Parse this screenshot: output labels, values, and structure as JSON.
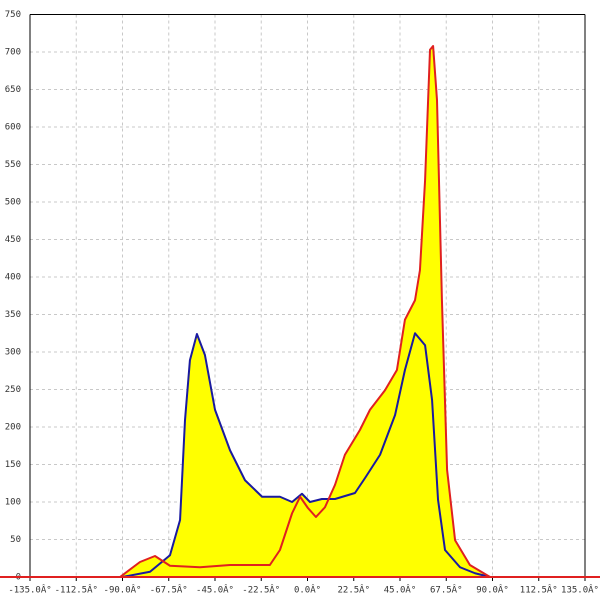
{
  "chart_data": {
    "type": "area-line",
    "xlim": [
      -135,
      135
    ],
    "xticks": [
      {
        "value": -135,
        "label": "-135.0Â°"
      },
      {
        "value": -112.5,
        "label": "-112.5Â°"
      },
      {
        "value": -90,
        "label": "-90.0Â°"
      },
      {
        "value": -67.5,
        "label": "-67.5Â°"
      },
      {
        "value": -45,
        "label": "-45.0Â°"
      },
      {
        "value": -22.5,
        "label": "-22.5Â°"
      },
      {
        "value": 0,
        "label": "0.0Â°"
      },
      {
        "value": 22.5,
        "label": "22.5Â°"
      },
      {
        "value": 45,
        "label": "45.0Â°"
      },
      {
        "value": 67.5,
        "label": "67.5Â°"
      },
      {
        "value": 90,
        "label": "90.0Â°"
      },
      {
        "value": 112.5,
        "label": "112.5Â°"
      },
      {
        "value": 135,
        "label": "135.0Â°"
      }
    ],
    "ylim": [
      0,
      750
    ],
    "yticks": [
      0,
      50,
      100,
      150,
      200,
      250,
      300,
      350,
      400,
      450,
      500,
      550,
      600,
      650,
      700,
      750
    ],
    "grid": true,
    "fill_color": "#ffff00",
    "series": [
      {
        "color": "#e02020",
        "x": [
          -91.2,
          -81.5,
          -74.2,
          -66.9,
          -52.3,
          -37.7,
          -18.3,
          -13.4,
          -7.5,
          -3.6,
          0.2,
          4.1,
          8.5,
          13.4,
          18.2,
          25.5,
          30.4,
          37.7,
          43.5,
          47.4,
          52.3,
          54.7,
          57.2,
          59.6,
          61.1,
          63,
          65.4,
          67.9,
          71.8,
          79,
          88.8
        ],
        "values": [
          0,
          20,
          28,
          15,
          13,
          16,
          16,
          36,
          85,
          107,
          92,
          80,
          93,
          123,
          163,
          196,
          223,
          249,
          276,
          343,
          369,
          409,
          529,
          703,
          708,
          636,
          369,
          143,
          49,
          16,
          0
        ]
      },
      {
        "color": "#1a1aa0",
        "x": [
          -90,
          -76.6,
          -66.9,
          -62,
          -59.6,
          -57.2,
          -53.8,
          -49.9,
          -45,
          -37.7,
          -30.4,
          -22.1,
          -13.4,
          -7.5,
          -2.7,
          1.2,
          7,
          13.4,
          23.1,
          28,
          35.3,
          42.6,
          47.4,
          52.3,
          57.2,
          60.6,
          63.5,
          66.9,
          74.2,
          81.5,
          88.8
        ],
        "values": [
          0,
          7,
          29,
          76,
          209,
          289,
          324,
          296,
          223,
          169,
          129,
          107,
          107,
          100,
          111,
          100,
          104,
          104,
          112,
          132,
          163,
          216,
          276,
          325,
          309,
          236,
          103,
          36,
          13,
          5,
          0
        ]
      }
    ]
  }
}
